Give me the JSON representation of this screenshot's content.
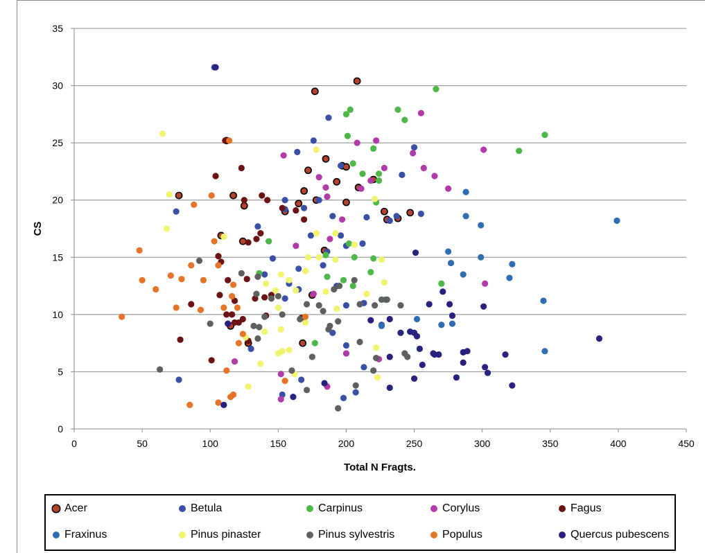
{
  "chart_data": {
    "type": "scatter",
    "title": "",
    "xlabel": "Total N Fragts.",
    "ylabel": "CS",
    "xlim": [
      0,
      450
    ],
    "ylim": [
      0,
      35
    ],
    "xticks": [
      "0",
      "50",
      "100",
      "150",
      "200",
      "250",
      "300",
      "350",
      "400",
      "450"
    ],
    "yticks": [
      "0",
      "5",
      "10",
      "15",
      "20",
      "25",
      "30",
      "35"
    ],
    "grid": "horizontal",
    "legend_position": "bottom",
    "series": [
      {
        "name": "Acer",
        "color": "#b5442e",
        "edge": "#000000",
        "points": [
          [
            108,
            16.9
          ],
          [
            112,
            25.2
          ],
          [
            177,
            29.5
          ],
          [
            208,
            30.4
          ],
          [
            117,
            20.4
          ],
          [
            169,
            20.8
          ],
          [
            193,
            21.6
          ],
          [
            165,
            19.7
          ],
          [
            172,
            22.6
          ],
          [
            200,
            19.8
          ],
          [
            197,
            23
          ],
          [
            228,
            19
          ],
          [
            230,
            18.3
          ],
          [
            209,
            21.1
          ],
          [
            200,
            22.9
          ],
          [
            220,
            21.8
          ],
          [
            238,
            18.4
          ],
          [
            247,
            18.9
          ],
          [
            184,
            15.6
          ],
          [
            125,
            19.5
          ],
          [
            178,
            20
          ],
          [
            124,
            16.4
          ],
          [
            77,
            20.4
          ],
          [
            128,
            7.5
          ],
          [
            168,
            7.5
          ],
          [
            175,
            11.7
          ],
          [
            115,
            9
          ],
          [
            185,
            23.6
          ],
          [
            155,
            19
          ]
        ]
      },
      {
        "name": "Betula",
        "color": "#3a50a6",
        "points": [
          [
            103,
            31.6
          ],
          [
            187,
            27.2
          ],
          [
            176,
            25.2
          ],
          [
            164,
            24.2
          ],
          [
            250,
            24.6
          ],
          [
            241,
            22.2
          ],
          [
            196,
            23
          ],
          [
            180,
            20
          ],
          [
            155,
            20
          ],
          [
            169,
            19.3
          ],
          [
            190,
            18.6
          ],
          [
            215,
            18.5
          ],
          [
            232,
            18.2
          ],
          [
            237,
            18.6
          ],
          [
            255,
            18.8
          ],
          [
            135,
            17.7
          ],
          [
            174,
            16.9
          ],
          [
            196,
            16.9
          ],
          [
            200,
            16
          ],
          [
            212,
            16.2
          ],
          [
            146,
            14.9
          ],
          [
            165,
            14
          ],
          [
            140,
            13.5
          ],
          [
            183,
            14.3
          ],
          [
            155,
            11.4
          ],
          [
            158,
            12.7
          ],
          [
            165,
            12.2
          ],
          [
            193,
            12.5
          ],
          [
            213,
            11
          ],
          [
            200,
            10.8
          ],
          [
            190,
            8.4
          ],
          [
            200,
            7.3
          ],
          [
            226,
            9.1
          ],
          [
            130,
            7
          ],
          [
            77,
            4.3
          ],
          [
            153,
            3
          ],
          [
            167,
            4.3
          ],
          [
            198,
            2.7
          ],
          [
            207,
            3.2
          ],
          [
            213,
            5.4
          ],
          [
            186,
            15.5
          ],
          [
            155,
            19.2
          ],
          [
            75,
            19
          ]
        ]
      },
      {
        "name": "Carpinus",
        "color": "#4fb74a",
        "points": [
          [
            266,
            29.7
          ],
          [
            203,
            27.9
          ],
          [
            200,
            27.5
          ],
          [
            238,
            27.9
          ],
          [
            243,
            27
          ],
          [
            346,
            25.7
          ],
          [
            327,
            24.3
          ],
          [
            201,
            25.6
          ],
          [
            220,
            24.5
          ],
          [
            205,
            23.2
          ],
          [
            212,
            22.3
          ],
          [
            224,
            22.3
          ],
          [
            224,
            21.7
          ],
          [
            222,
            19.8
          ],
          [
            202,
            16.2
          ],
          [
            185,
            15.2
          ],
          [
            206,
            15
          ],
          [
            220,
            14.9
          ],
          [
            143,
            16.4
          ],
          [
            136,
            13.6
          ],
          [
            186,
            13.3
          ],
          [
            198,
            13
          ],
          [
            205,
            12.5
          ],
          [
            218,
            13.7
          ],
          [
            177,
            7.5
          ],
          [
            270,
            12.7
          ]
        ]
      },
      {
        "name": "Corylus",
        "color": "#b03aa6",
        "points": [
          [
            255,
            27.6
          ],
          [
            222,
            25.2
          ],
          [
            208,
            25
          ],
          [
            249,
            24.1
          ],
          [
            301,
            24.4
          ],
          [
            154,
            23.9
          ],
          [
            228,
            22.8
          ],
          [
            257,
            22.8
          ],
          [
            265,
            22.1
          ],
          [
            218,
            21.7
          ],
          [
            211,
            21
          ],
          [
            180,
            22
          ],
          [
            185,
            21.1
          ],
          [
            275,
            21
          ],
          [
            186,
            20.3
          ],
          [
            197,
            18.3
          ],
          [
            163,
            16
          ],
          [
            188,
            16.6
          ],
          [
            302,
            12.7
          ],
          [
            176,
            11.8
          ],
          [
            118,
            5.9
          ],
          [
            152,
            4.8
          ],
          [
            186,
            3.7
          ],
          [
            224,
            6.1
          ],
          [
            152,
            2.6
          ],
          [
            200,
            6.6
          ]
        ]
      },
      {
        "name": "Fagus",
        "color": "#6b1215",
        "points": [
          [
            123,
            22.8
          ],
          [
            104,
            22.1
          ],
          [
            111,
            25.2
          ],
          [
            125,
            20
          ],
          [
            138,
            20.4
          ],
          [
            142,
            20
          ],
          [
            153,
            19.3
          ],
          [
            163,
            19.1
          ],
          [
            137,
            17.1
          ],
          [
            128,
            16.3
          ],
          [
            134,
            16.6
          ],
          [
            106,
            15.1
          ],
          [
            108,
            14.6
          ],
          [
            113,
            13
          ],
          [
            127,
            13.1
          ],
          [
            107,
            11.7
          ],
          [
            118,
            11.2
          ],
          [
            133,
            11.4
          ],
          [
            140,
            11.5
          ],
          [
            145,
            11.7
          ],
          [
            86,
            10.9
          ],
          [
            112,
            10
          ],
          [
            118,
            9.3
          ],
          [
            121,
            9.3
          ],
          [
            141,
            9.9
          ],
          [
            167,
            9.7
          ],
          [
            116,
            10
          ],
          [
            124,
            9.6
          ],
          [
            101,
            6
          ],
          [
            78,
            7.8
          ],
          [
            128,
            7.7
          ],
          [
            169,
            18.3
          ]
        ]
      },
      {
        "name": "Fraxinus",
        "color": "#2f6db3",
        "points": [
          [
            399,
            18.2
          ],
          [
            288,
            20.7
          ],
          [
            288,
            18.6
          ],
          [
            299,
            17.8
          ],
          [
            275,
            15.5
          ],
          [
            277,
            14.5
          ],
          [
            299,
            15
          ],
          [
            322,
            14.4
          ],
          [
            286,
            13.5
          ],
          [
            320,
            13.2
          ],
          [
            345,
            11.2
          ],
          [
            346,
            6.8
          ],
          [
            270,
            9.1
          ],
          [
            278,
            9.2
          ],
          [
            226,
            9
          ],
          [
            252,
            9.6
          ],
          [
            229,
            11.3
          ]
        ]
      },
      {
        "name": "Pinus pinaster",
        "color": "#f1f46f",
        "points": [
          [
            65,
            25.8
          ],
          [
            70,
            20.5
          ],
          [
            68,
            17.5
          ],
          [
            110,
            16.8
          ],
          [
            178,
            24.4
          ],
          [
            178,
            17.1
          ],
          [
            192,
            17.1
          ],
          [
            206,
            16.1
          ],
          [
            172,
            15
          ],
          [
            180,
            15
          ],
          [
            192,
            14.8
          ],
          [
            226,
            14.8
          ],
          [
            170,
            13.8
          ],
          [
            152,
            13.5
          ],
          [
            158,
            13
          ],
          [
            141,
            12.7
          ],
          [
            148,
            12.1
          ],
          [
            163,
            12.1
          ],
          [
            185,
            12
          ],
          [
            215,
            11.8
          ],
          [
            228,
            12.8
          ],
          [
            193,
            10.5
          ],
          [
            150,
            10.6
          ],
          [
            170,
            9.3
          ],
          [
            152,
            8.7
          ],
          [
            126,
            8
          ],
          [
            140,
            8.5
          ],
          [
            153,
            6.8
          ],
          [
            158,
            6.9
          ],
          [
            150,
            6.6
          ],
          [
            137,
            5.7
          ],
          [
            128,
            3.7
          ],
          [
            162,
            4.8
          ],
          [
            222,
            7.1
          ],
          [
            223,
            4.5
          ],
          [
            221,
            20.1
          ]
        ]
      },
      {
        "name": "Pinus sylvestris",
        "color": "#5f5f5f",
        "points": [
          [
            63,
            5.2
          ],
          [
            92,
            14.7
          ],
          [
            123,
            13.6
          ],
          [
            135,
            13.3
          ],
          [
            134,
            11.8
          ],
          [
            145,
            11.4
          ],
          [
            150,
            11.6
          ],
          [
            171,
            10.9
          ],
          [
            191,
            12.2
          ],
          [
            195,
            12.5
          ],
          [
            206,
            13
          ],
          [
            180,
            10.8
          ],
          [
            183,
            10.3
          ],
          [
            210,
            10.9
          ],
          [
            221,
            10.8
          ],
          [
            226,
            11.3
          ],
          [
            230,
            11.3
          ],
          [
            240,
            10.8
          ],
          [
            153,
            10
          ],
          [
            188,
            9
          ],
          [
            187,
            8.7
          ],
          [
            194,
            9.4
          ],
          [
            166,
            9.6
          ],
          [
            140,
            9.8
          ],
          [
            135,
            7.9
          ],
          [
            136,
            8.9
          ],
          [
            210,
            7.6
          ],
          [
            222,
            6.2
          ],
          [
            175,
            6.3
          ],
          [
            160,
            5.1
          ],
          [
            220,
            5.1
          ],
          [
            207,
            3.8
          ],
          [
            171,
            3.4
          ],
          [
            194,
            1.8
          ],
          [
            243,
            6.6
          ],
          [
            245,
            6.3
          ],
          [
            100,
            9.2
          ],
          [
            132,
            9
          ]
        ]
      },
      {
        "name": "Populus",
        "color": "#e5732a",
        "points": [
          [
            114,
            25.2
          ],
          [
            101,
            20.4
          ],
          [
            88,
            19.6
          ],
          [
            48,
            15.6
          ],
          [
            103,
            16.4
          ],
          [
            106,
            14.3
          ],
          [
            86,
            14.3
          ],
          [
            50,
            13
          ],
          [
            71,
            13.4
          ],
          [
            79,
            13.1
          ],
          [
            95,
            13
          ],
          [
            117,
            12.6
          ],
          [
            116,
            11.6
          ],
          [
            110,
            10.6
          ],
          [
            120,
            10.6
          ],
          [
            60,
            12.2
          ],
          [
            75,
            10.6
          ],
          [
            93,
            10.4
          ],
          [
            35,
            9.8
          ],
          [
            170,
            9.8
          ],
          [
            124,
            8.3
          ],
          [
            121,
            7.5
          ],
          [
            112,
            5.1
          ],
          [
            106,
            2.3
          ],
          [
            115,
            2.8
          ],
          [
            117,
            3
          ],
          [
            85,
            2.1
          ],
          [
            155,
            4.2
          ]
        ]
      },
      {
        "name": "Quercus pubescens",
        "color": "#28217d",
        "points": [
          [
            104,
            31.6
          ],
          [
            251,
            15.4
          ],
          [
            261,
            10.9
          ],
          [
            276,
            10.9
          ],
          [
            301,
            10.7
          ],
          [
            271,
            12
          ],
          [
            278,
            9.9
          ],
          [
            240,
            8.4
          ],
          [
            247,
            8.5
          ],
          [
            250,
            8.4
          ],
          [
            252,
            8.1
          ],
          [
            386,
            7.9
          ],
          [
            286,
            6.7
          ],
          [
            289,
            6.8
          ],
          [
            317,
            6.5
          ],
          [
            265,
            6.5
          ],
          [
            264,
            6.6
          ],
          [
            268,
            6.5
          ],
          [
            254,
            7
          ],
          [
            232,
            6.3
          ],
          [
            256,
            5.6
          ],
          [
            286,
            5.8
          ],
          [
            302,
            5.4
          ],
          [
            304,
            4.9
          ],
          [
            281,
            4.5
          ],
          [
            250,
            4.4
          ],
          [
            322,
            3.8
          ],
          [
            232,
            3.6
          ],
          [
            184,
            4
          ],
          [
            161,
            2.8
          ],
          [
            110,
            2.1
          ],
          [
            113,
            9.2
          ],
          [
            232,
            9.6
          ],
          [
            218,
            9.5
          ]
        ]
      }
    ]
  }
}
